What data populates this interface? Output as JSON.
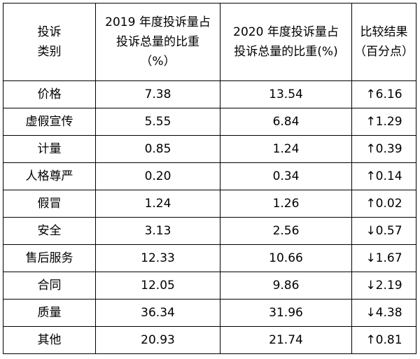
{
  "table": {
    "headers": [
      [
        "投诉",
        "类别"
      ],
      [
        "2019 年度投诉量占",
        "投诉总量的比重",
        "（%）"
      ],
      [
        "2020 年度投诉量占",
        "投诉总量的比重(%)"
      ],
      [
        "比较结果",
        "（百分点）"
      ]
    ],
    "rows": [
      [
        "价格",
        "7.38",
        "13.54",
        "↑6.16"
      ],
      [
        "虚假宣传",
        "5.55",
        "6.84",
        "↑1.29"
      ],
      [
        "计量",
        "0.85",
        "1.24",
        "↑0.39"
      ],
      [
        "人格尊严",
        "0.20",
        "0.34",
        "↑0.14"
      ],
      [
        "假冒",
        "1.24",
        "1.26",
        "↑0.02"
      ],
      [
        "安全",
        "3.13",
        "2.56",
        "↓0.57"
      ],
      [
        "售后服务",
        "12.33",
        "10.66",
        "↓1.67"
      ],
      [
        "合同",
        "12.05",
        "9.86",
        "↓2.19"
      ],
      [
        "质量",
        "36.34",
        "31.96",
        "↓4.38"
      ],
      [
        "其他",
        "20.93",
        "21.74",
        "↑0.81"
      ]
    ]
  }
}
